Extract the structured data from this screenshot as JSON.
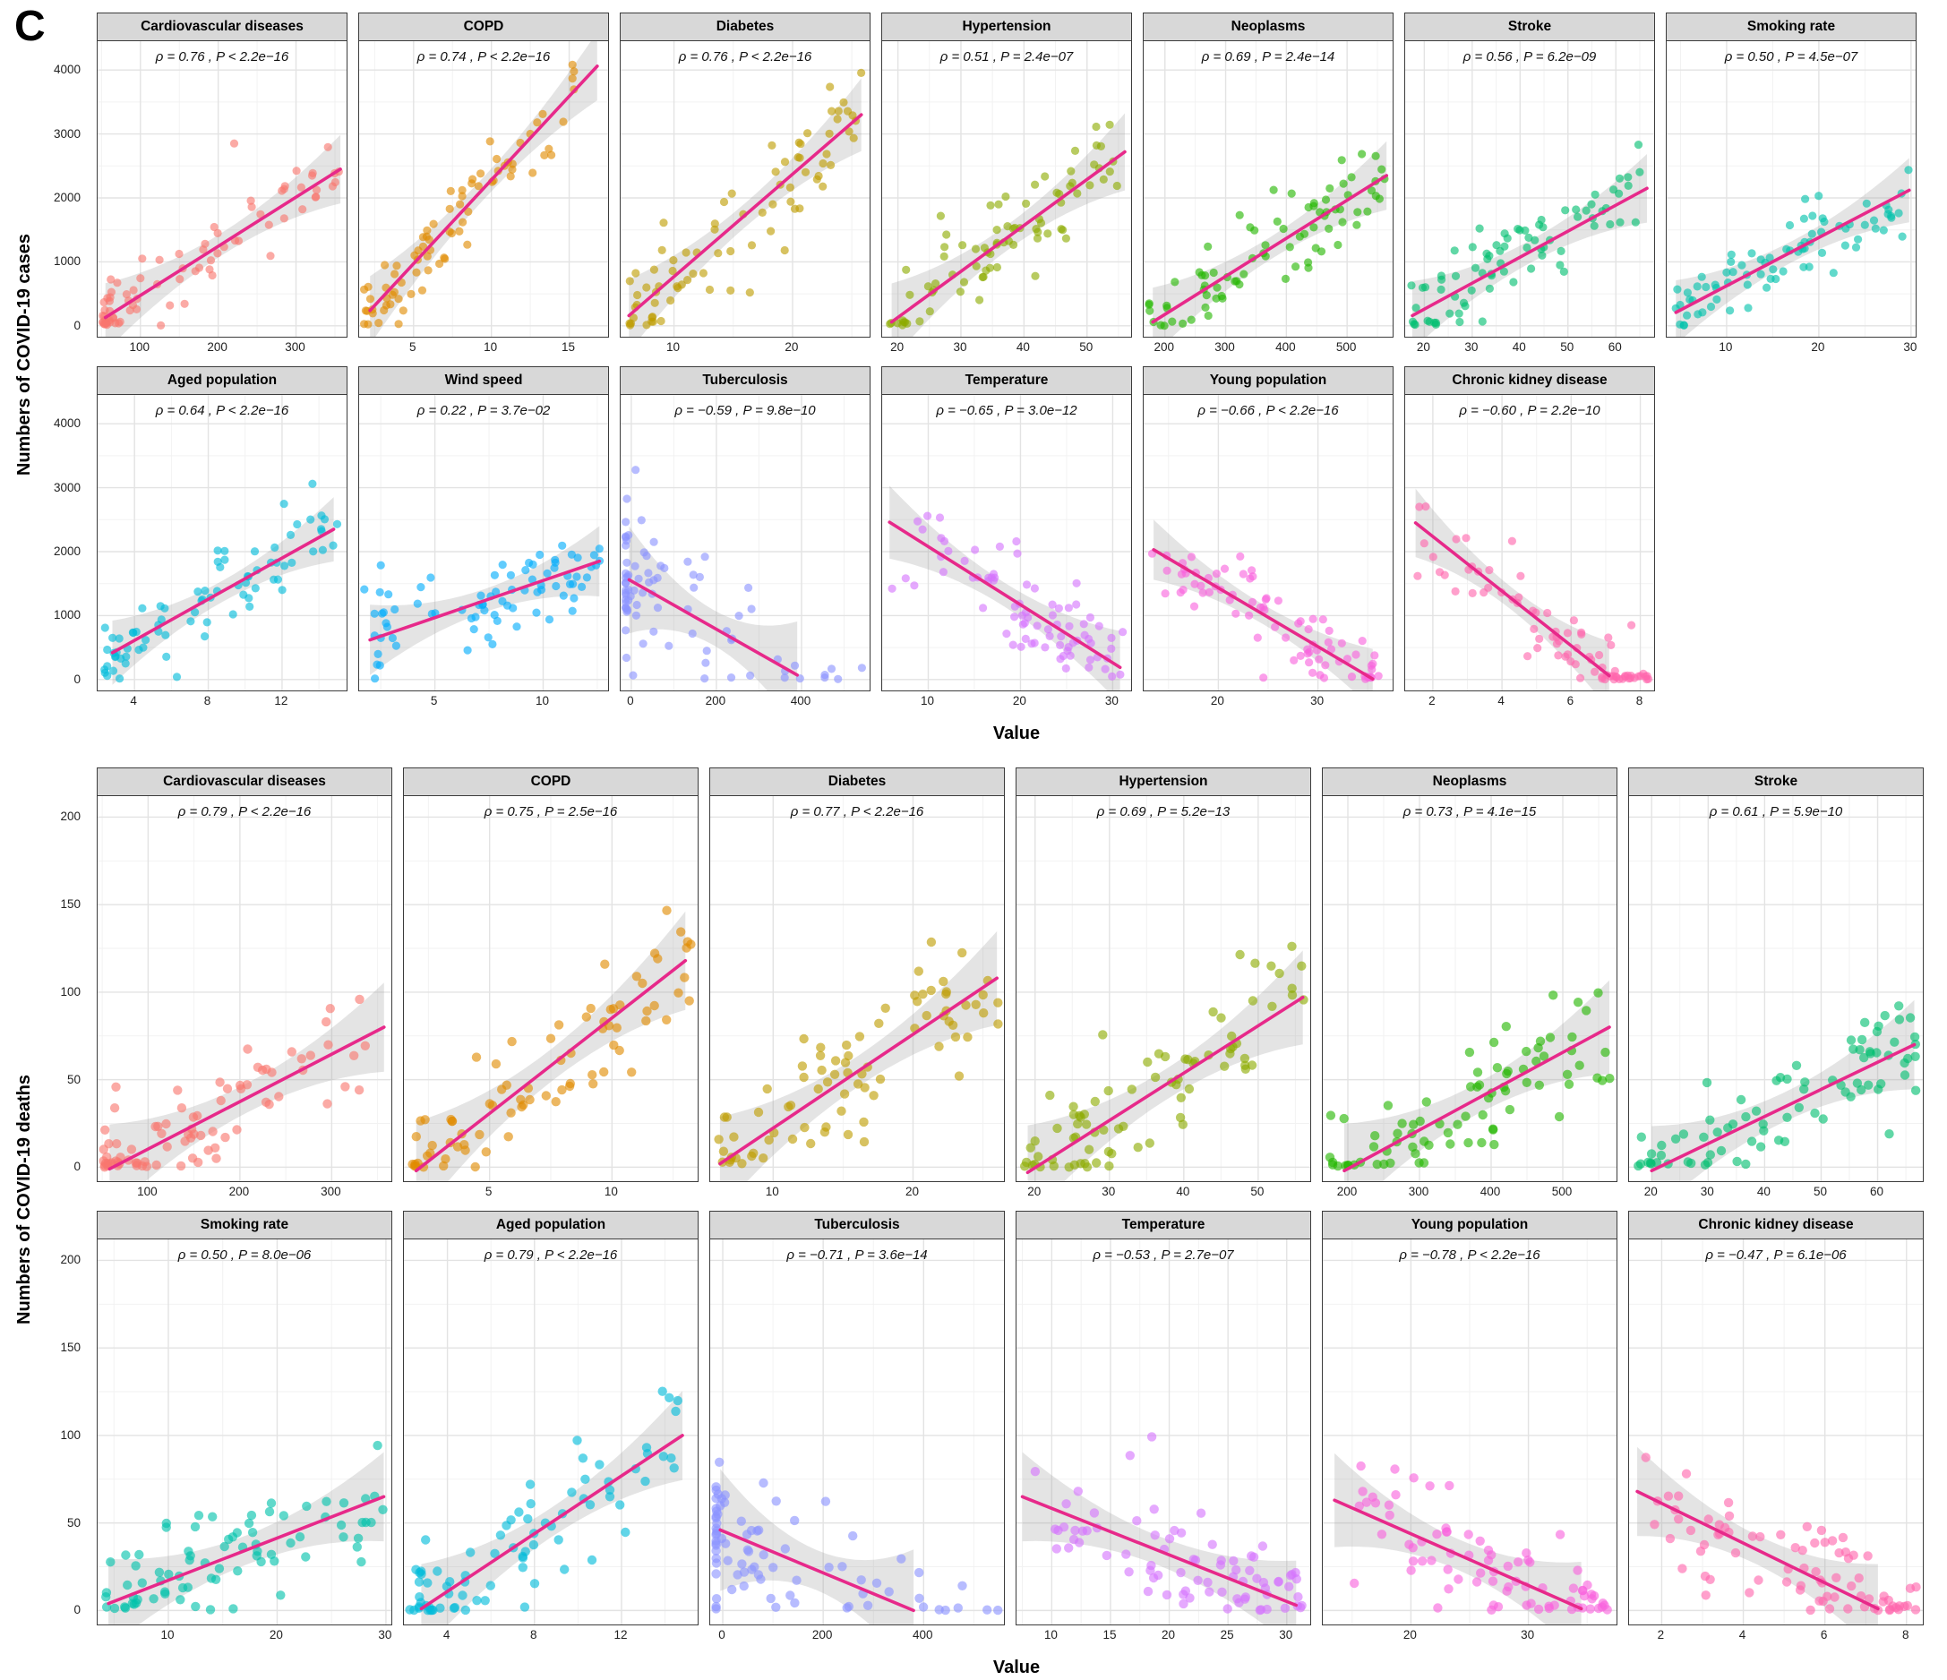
{
  "panel_label": "C",
  "style": {
    "trend_color": "#e7298a",
    "band_color": "#9e9e9e",
    "grid_major": "#e3e3e3",
    "grid_minor": "#f2f2f2",
    "header_bg": "#d8d8d8",
    "border_color": "#3c3c3c",
    "point_alpha": 0.62
  },
  "chart_data": [
    {
      "type": "scatter",
      "section": "cases",
      "ylabel": "Numbers of COVID-19 cases",
      "xlabel": "Value",
      "y_ticks": [
        0,
        1000,
        2000,
        3000,
        4000
      ],
      "y_range": [
        -170,
        4450
      ],
      "n_points": 80,
      "point_r": 4.6,
      "point_cap": 4200,
      "point_floor": 0,
      "floor_jitter": 70,
      "rows": [
        [
          {
            "title": "Cardiovascular diseases",
            "color": "#F8766D",
            "rho": 0.76,
            "p_text": "P < 2.2e−16",
            "annotation": "ρ = 0.76 , P < 2.2e−16",
            "x_ticks": [
              100,
              200,
              300
            ],
            "x_range": [
              45,
              365
            ],
            "trend": {
              "x0": 55,
              "y0": 130,
              "x1": 357,
              "y1": 2450
            },
            "noise": 800,
            "x_skew": 1.7,
            "seed": 11
          },
          {
            "title": "COPD",
            "color": "#E18A00",
            "rho": 0.74,
            "p_text": "P < 2.2e−16",
            "annotation": "ρ = 0.74 , P < 2.2e−16",
            "x_ticks": [
              5,
              10,
              15
            ],
            "x_range": [
              1.5,
              17.5
            ],
            "trend": {
              "x0": 2.2,
              "y0": 240,
              "x1": 16.8,
              "y1": 4060
            },
            "noise": 800,
            "x_skew": 1.25,
            "seed": 12
          },
          {
            "title": "Diabetes",
            "color": "#BE9C00",
            "rho": 0.76,
            "p_text": "P < 2.2e−16",
            "annotation": "ρ = 0.76 , P < 2.2e−16",
            "x_ticks": [
              10,
              20
            ],
            "x_range": [
              5.5,
              26.5
            ],
            "trend": {
              "x0": 6.2,
              "y0": 160,
              "x1": 25.8,
              "y1": 3300
            },
            "noise": 850,
            "x_skew": 1.15,
            "seed": 13
          },
          {
            "title": "Hypertension",
            "color": "#8CAB00",
            "rho": 0.51,
            "p_text": "P = 2.4e−07",
            "annotation": "ρ = 0.51 , P = 2.4e−07",
            "x_ticks": [
              20,
              30,
              40,
              50
            ],
            "x_range": [
              17.5,
              57
            ],
            "trend": {
              "x0": 19,
              "y0": 60,
              "x1": 56,
              "y1": 2720
            },
            "noise": 900,
            "x_skew": 1.05,
            "seed": 14
          },
          {
            "title": "Neoplasms",
            "color": "#24B700",
            "rho": 0.69,
            "p_text": "P = 2.4e−14",
            "annotation": "ρ = 0.69 , P = 2.4e−14",
            "x_ticks": [
              200,
              300,
              400,
              500
            ],
            "x_range": [
              165,
              575
            ],
            "trend": {
              "x0": 180,
              "y0": 60,
              "x1": 565,
              "y1": 2350
            },
            "noise": 800,
            "x_skew": 1.0,
            "seed": 15
          },
          {
            "title": "Stroke",
            "color": "#00BE70",
            "rho": 0.56,
            "p_text": "P = 6.2e−09",
            "annotation": "ρ = 0.56 , P = 6.2e−09",
            "x_ticks": [
              20,
              30,
              40,
              50,
              60
            ],
            "x_range": [
              16,
              68
            ],
            "trend": {
              "x0": 17.5,
              "y0": 160,
              "x1": 66.5,
              "y1": 2150
            },
            "noise": 800,
            "x_skew": 1.0,
            "seed": 16
          },
          {
            "title": "Smoking rate",
            "color": "#00C1AB",
            "rho": 0.5,
            "p_text": "P = 4.5e−07",
            "annotation": "ρ = 0.50 , P = 4.5e−07",
            "x_ticks": [
              10,
              20,
              30
            ],
            "x_range": [
              3.5,
              30.5
            ],
            "trend": {
              "x0": 4.5,
              "y0": 210,
              "x1": 29.8,
              "y1": 2120
            },
            "noise": 750,
            "x_skew": 1.0,
            "seed": 17
          }
        ],
        [
          {
            "title": "Aged population",
            "color": "#00BBDA",
            "rho": 0.64,
            "p_text": "P < 2.2e−16",
            "annotation": "ρ = 0.64 , P < 2.2e−16",
            "x_ticks": [
              4,
              8,
              12
            ],
            "x_range": [
              2,
              15.5
            ],
            "trend": {
              "x0": 2.8,
              "y0": 420,
              "x1": 14.8,
              "y1": 2350
            },
            "noise": 750,
            "x_skew": 1.45,
            "seed": 18
          },
          {
            "title": "Wind speed",
            "color": "#00ACFC",
            "rho": 0.22,
            "p_text": "P = 3.7e−02",
            "annotation": "ρ = 0.22 , P = 3.7e−02",
            "x_ticks": [
              5,
              10
            ],
            "x_range": [
              1.5,
              13
            ],
            "trend": {
              "x0": 2,
              "y0": 620,
              "x1": 12.6,
              "y1": 1850
            },
            "noise": 820,
            "x_skew": 1.1,
            "seed": 19
          },
          {
            "title": "Tuberculosis",
            "color": "#8B93FF",
            "rho": -0.59,
            "p_text": "P = 9.8e−10",
            "annotation": "ρ = −0.59 , P = 9.8e−10",
            "x_ticks": [
              0,
              200,
              400
            ],
            "x_range": [
              -25,
              560
            ],
            "trend": {
              "x0": -5,
              "y0": 1560,
              "x1": 390,
              "y1": 70
            },
            "noise": 1250,
            "x_skew": 3.8,
            "seed": 20
          },
          {
            "title": "Temperature",
            "color": "#D575FE",
            "rho": -0.65,
            "p_text": "P = 3.0e−12",
            "annotation": "ρ = −0.65 , P = 3.0e−12",
            "x_ticks": [
              10,
              20,
              30
            ],
            "x_range": [
              5,
              32
            ],
            "trend": {
              "x0": 5.8,
              "y0": 2460,
              "x1": 30.8,
              "y1": 190
            },
            "noise": 850,
            "x_skew": 0.65,
            "seed": 21
          },
          {
            "title": "Young population",
            "color": "#F962DD",
            "rho": -0.66,
            "p_text": "P < 2.2e−16",
            "annotation": "ρ = −0.66 , P < 2.2e−16",
            "x_ticks": [
              20,
              30
            ],
            "x_range": [
              12.5,
              37.5
            ],
            "trend": {
              "x0": 13.5,
              "y0": 2030,
              "x1": 35.5,
              "y1": 10
            },
            "noise": 700,
            "x_skew": 0.65,
            "seed": 22
          },
          {
            "title": "Chronic kidney disease",
            "color": "#FF65AC",
            "rho": -0.6,
            "p_text": "P = 2.2e−10",
            "annotation": "ρ = −0.60 , P = 2.2e−10",
            "x_ticks": [
              2,
              4,
              6,
              8
            ],
            "x_range": [
              1.2,
              8.4
            ],
            "trend": {
              "x0": 1.5,
              "y0": 2450,
              "x1": 7.1,
              "y1": 60
            },
            "noise": 800,
            "x_skew": 0.7,
            "seed": 23
          }
        ]
      ]
    },
    {
      "type": "scatter",
      "section": "deaths",
      "ylabel": "Numbers of COVID-19 deaths",
      "xlabel": "Value",
      "y_ticks": [
        0,
        50,
        100,
        150,
        200
      ],
      "y_range": [
        -8,
        212
      ],
      "n_points": 80,
      "point_r": 5.2,
      "point_cap": 182,
      "point_floor": 0,
      "floor_jitter": 3,
      "rows": [
        [
          {
            "title": "Cardiovascular diseases",
            "color": "#F8766D",
            "rho": 0.79,
            "p_text": "P < 2.2e−16",
            "annotation": "ρ = 0.79 , P < 2.2e−16",
            "x_ticks": [
              100,
              200,
              300
            ],
            "x_range": [
              45,
              365
            ],
            "trend": {
              "x0": 58,
              "y0": -1,
              "x1": 357,
              "y1": 80
            },
            "noise": 38,
            "x_skew": 1.7,
            "seed": 31
          },
          {
            "title": "COPD",
            "color": "#E18A00",
            "rho": 0.75,
            "p_text": "P = 2.5e−16",
            "annotation": "ρ = 0.75 , P = 2.5e−16",
            "x_ticks": [
              5,
              10
            ],
            "x_range": [
              1.5,
              13.5
            ],
            "trend": {
              "x0": 2,
              "y0": -2,
              "x1": 13,
              "y1": 118
            },
            "noise": 42,
            "x_skew": 1.25,
            "seed": 32
          },
          {
            "title": "Diabetes",
            "color": "#BE9C00",
            "rho": 0.77,
            "p_text": "P < 2.2e−16",
            "annotation": "ρ = 0.77 , P < 2.2e−16",
            "x_ticks": [
              10,
              20
            ],
            "x_range": [
              5.5,
              26.5
            ],
            "trend": {
              "x0": 6.2,
              "y0": 2,
              "x1": 26,
              "y1": 108
            },
            "noise": 40,
            "x_skew": 1.15,
            "seed": 33
          },
          {
            "title": "Hypertension",
            "color": "#8CAB00",
            "rho": 0.69,
            "p_text": "P = 5.2e−13",
            "annotation": "ρ = 0.69 , P = 5.2e−13",
            "x_ticks": [
              20,
              30,
              40,
              50
            ],
            "x_range": [
              17.5,
              57
            ],
            "trend": {
              "x0": 19,
              "y0": -3,
              "x1": 56,
              "y1": 97
            },
            "noise": 40,
            "x_skew": 1.05,
            "seed": 34
          },
          {
            "title": "Neoplasms",
            "color": "#24B700",
            "rho": 0.73,
            "p_text": "P = 4.1e−15",
            "annotation": "ρ = 0.73 , P = 4.1e−15",
            "x_ticks": [
              200,
              300,
              400,
              500
            ],
            "x_range": [
              165,
              575
            ],
            "trend": {
              "x0": 195,
              "y0": -2,
              "x1": 565,
              "y1": 80
            },
            "noise": 40,
            "x_skew": 1.0,
            "seed": 35
          },
          {
            "title": "Stroke",
            "color": "#00BE70",
            "rho": 0.61,
            "p_text": "P = 5.9e−10",
            "annotation": "ρ = 0.61 , P = 5.9e−10",
            "x_ticks": [
              20,
              30,
              40,
              50,
              60
            ],
            "x_range": [
              16,
              68
            ],
            "trend": {
              "x0": 20,
              "y0": -2,
              "x1": 66.5,
              "y1": 70
            },
            "noise": 38,
            "x_skew": 1.0,
            "seed": 36
          }
        ],
        [
          {
            "title": "Smoking rate",
            "color": "#00C1AB",
            "rho": 0.5,
            "p_text": "P = 8.0e−06",
            "annotation": "ρ = 0.50 , P = 8.0e−06",
            "x_ticks": [
              10,
              20,
              30
            ],
            "x_range": [
              3.5,
              30.5
            ],
            "trend": {
              "x0": 4.5,
              "y0": 4,
              "x1": 29.8,
              "y1": 65
            },
            "noise": 38,
            "x_skew": 1.0,
            "seed": 37
          },
          {
            "title": "Aged population",
            "color": "#00BBDA",
            "rho": 0.79,
            "p_text": "P < 2.2e−16",
            "annotation": "ρ = 0.79 , P < 2.2e−16",
            "x_ticks": [
              4,
              8,
              12
            ],
            "x_range": [
              2,
              15.5
            ],
            "trend": {
              "x0": 2.8,
              "y0": 1,
              "x1": 14.8,
              "y1": 100
            },
            "noise": 38,
            "x_skew": 1.45,
            "seed": 38
          },
          {
            "title": "Tuberculosis",
            "color": "#8B93FF",
            "rho": -0.71,
            "p_text": "P = 3.6e−14",
            "annotation": "ρ = −0.71 , P = 3.6e−14",
            "x_ticks": [
              0,
              200,
              400
            ],
            "x_range": [
              -25,
              560
            ],
            "trend": {
              "x0": -5,
              "y0": 46,
              "x1": 380,
              "y1": 0
            },
            "noise": 52,
            "x_skew": 3.8,
            "seed": 39
          },
          {
            "title": "Temperature",
            "color": "#D575FE",
            "rho": -0.53,
            "p_text": "P = 2.7e−07",
            "annotation": "ρ = −0.53 , P = 2.7e−07",
            "x_ticks": [
              10,
              15,
              20,
              25,
              30
            ],
            "x_range": [
              7,
              32
            ],
            "trend": {
              "x0": 7.5,
              "y0": 65,
              "x1": 30.8,
              "y1": 3
            },
            "noise": 38,
            "x_skew": 0.65,
            "seed": 40
          },
          {
            "title": "Young population",
            "color": "#F962DD",
            "rho": -0.78,
            "p_text": "P < 2.2e−16",
            "annotation": "ρ = −0.78 , P < 2.2e−16",
            "x_ticks": [
              20,
              30
            ],
            "x_range": [
              12.5,
              37.5
            ],
            "trend": {
              "x0": 13.5,
              "y0": 63,
              "x1": 34.5,
              "y1": 1
            },
            "noise": 40,
            "x_skew": 0.65,
            "seed": 41
          },
          {
            "title": "Chronic kidney disease",
            "color": "#FF65AC",
            "rho": -0.47,
            "p_text": "P = 6.1e−06",
            "annotation": "ρ = −0.47 , P = 6.1e−06",
            "x_ticks": [
              2,
              4,
              6,
              8
            ],
            "x_range": [
              1.2,
              8.4
            ],
            "trend": {
              "x0": 1.4,
              "y0": 68,
              "x1": 7.3,
              "y1": 1
            },
            "noise": 38,
            "x_skew": 0.7,
            "seed": 42
          }
        ]
      ]
    }
  ]
}
